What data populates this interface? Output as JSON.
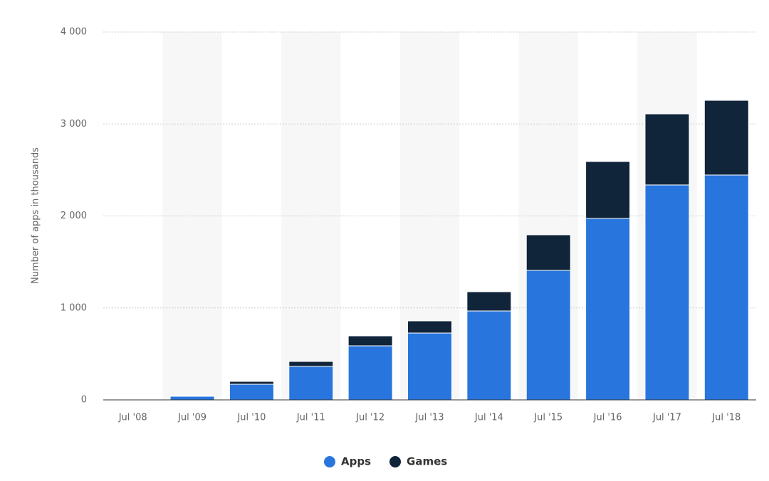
{
  "chart_data": {
    "type": "stacked_bar",
    "y_label": "Number of apps in thousands",
    "categories": [
      "Jul '08",
      "Jul '09",
      "Jul '10",
      "Jul '11",
      "Jul '12",
      "Jul '13",
      "Jul '14",
      "Jul '15",
      "Jul '16",
      "Jul '17",
      "Jul '18"
    ],
    "series": [
      {
        "name": "Apps",
        "color": "#2876dd",
        "values": [
          3,
          40,
          170,
          364,
          588,
          727,
          967,
          1408,
          1973,
          2337,
          2445
        ]
      },
      {
        "name": "Games",
        "color": "#10243a",
        "values": [
          1,
          5,
          31,
          54,
          108,
          132,
          209,
          387,
          619,
          773,
          812
        ]
      }
    ],
    "ylim": [
      0,
      4000
    ],
    "yticks": [
      0,
      {
        "value": 1000,
        "label": "1 000"
      },
      {
        "value": 2000,
        "label": "2 000"
      },
      {
        "value": 3000,
        "label": "3 000"
      },
      {
        "value": 4000,
        "label": "4 000"
      }
    ],
    "grid": true,
    "legend": "bottom"
  }
}
